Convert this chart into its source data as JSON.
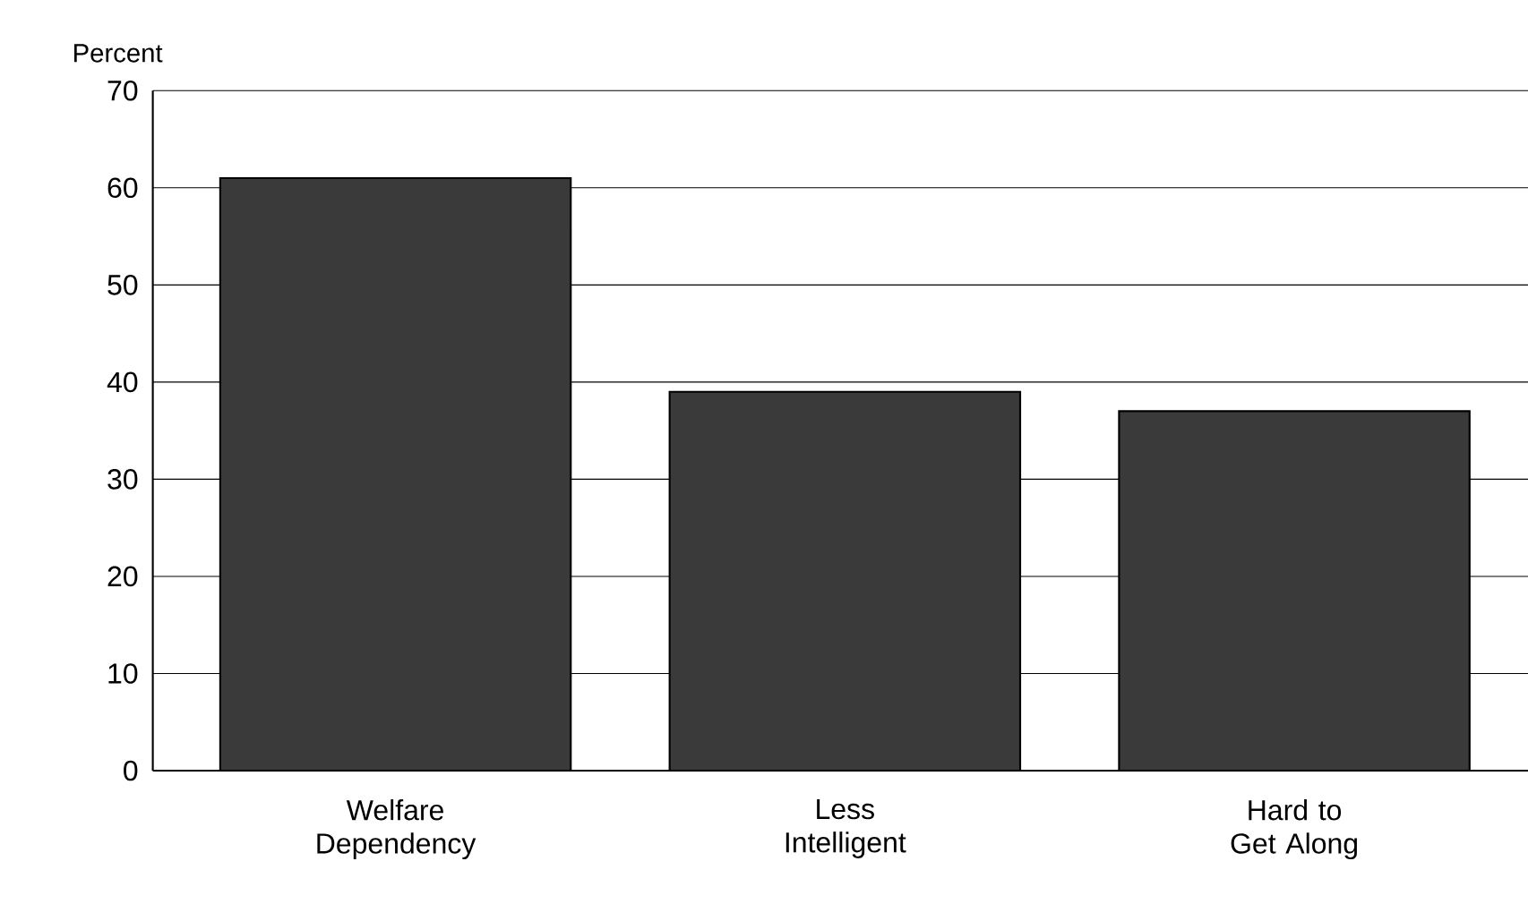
{
  "chart_data": {
    "type": "bar",
    "ylabel": "Percent",
    "categories": [
      "Welfare Dependency",
      "Less Intelligent",
      "Hard to Get Along"
    ],
    "values": [
      61,
      39,
      37
    ],
    "color": "#3a3a3a",
    "ylim": [
      0,
      70
    ],
    "yticks": [
      0,
      10,
      20,
      30,
      40,
      50,
      60,
      70
    ],
    "grid": "y"
  }
}
